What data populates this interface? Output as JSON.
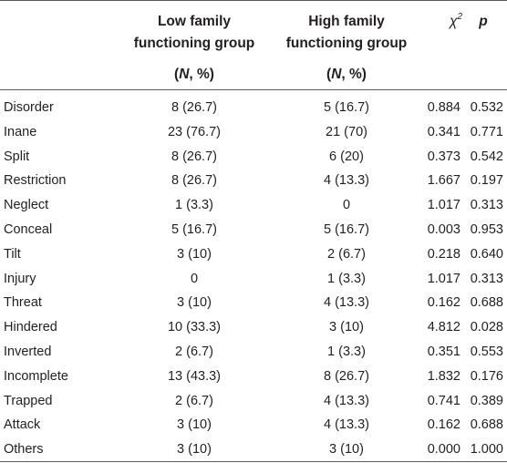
{
  "table": {
    "headers": {
      "low_line1": "Low family",
      "low_line2": "functioning group",
      "high_line1": "High family",
      "high_line2": "functioning group",
      "sub_n": "N",
      "sub_rest": ", %)",
      "sub_open": "(",
      "chi_symbol": "χ",
      "chi_sup": "2",
      "p": "p"
    },
    "rows": [
      {
        "label": "Disorder",
        "low": "8 (26.7)",
        "high": "5 (16.7)",
        "chi2": "0.884",
        "p": "0.532"
      },
      {
        "label": "Inane",
        "low": "23 (76.7)",
        "high": "21 (70)",
        "chi2": "0.341",
        "p": "0.771"
      },
      {
        "label": "Split",
        "low": "8 (26.7)",
        "high": "6 (20)",
        "chi2": "0.373",
        "p": "0.542"
      },
      {
        "label": "Restriction",
        "low": "8 (26.7)",
        "high": "4 (13.3)",
        "chi2": "1.667",
        "p": "0.197"
      },
      {
        "label": "Neglect",
        "low": "1 (3.3)",
        "high": "0",
        "chi2": "1.017",
        "p": "0.313"
      },
      {
        "label": "Conceal",
        "low": "5 (16.7)",
        "high": "5 (16.7)",
        "chi2": "0.003",
        "p": "0.953"
      },
      {
        "label": "Tilt",
        "low": "3 (10)",
        "high": "2 (6.7)",
        "chi2": "0.218",
        "p": "0.640"
      },
      {
        "label": "Injury",
        "low": "0",
        "high": "1 (3.3)",
        "chi2": "1.017",
        "p": "0.313"
      },
      {
        "label": "Threat",
        "low": "3 (10)",
        "high": "4 (13.3)",
        "chi2": "0.162",
        "p": "0.688"
      },
      {
        "label": "Hindered",
        "low": "10 (33.3)",
        "high": "3 (10)",
        "chi2": "4.812",
        "p": "0.028"
      },
      {
        "label": "Inverted",
        "low": "2 (6.7)",
        "high": "1 (3.3)",
        "chi2": "0.351",
        "p": "0.553"
      },
      {
        "label": "Incomplete",
        "low": "13 (43.3)",
        "high": "8 (26.7)",
        "chi2": "1.832",
        "p": "0.176"
      },
      {
        "label": "Trapped",
        "low": "2 (6.7)",
        "high": "4 (13.3)",
        "chi2": "0.741",
        "p": "0.389"
      },
      {
        "label": "Attack",
        "low": "3 (10)",
        "high": "4 (13.3)",
        "chi2": "0.162",
        "p": "0.688"
      },
      {
        "label": "Others",
        "low": "3 (10)",
        "high": "3 (10)",
        "chi2": "0.000",
        "p": "1.000"
      }
    ]
  }
}
